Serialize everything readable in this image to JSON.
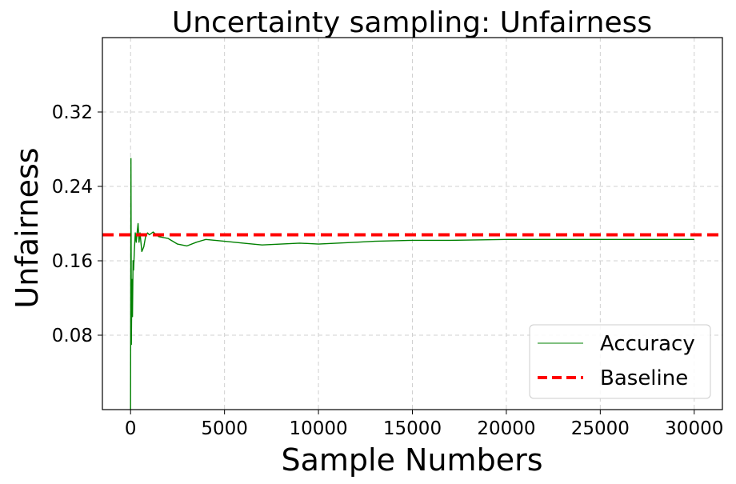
{
  "chart_data": {
    "type": "line",
    "title": "Uncertainty sampling: Unfairness",
    "xlabel": "Sample Numbers",
    "ylabel": "Unfairness",
    "xlim": [
      -1500,
      31500
    ],
    "ylim": [
      0.0,
      0.4
    ],
    "xticks": [
      0,
      5000,
      10000,
      15000,
      20000,
      25000,
      30000
    ],
    "yticks": [
      0.08,
      0.16,
      0.24,
      0.32
    ],
    "ytick_labels": [
      "0.08",
      "0.16",
      "0.24",
      "0.32"
    ],
    "grid": true,
    "legend_position": "lower-right",
    "series": [
      {
        "name": "Accuracy",
        "color": "#008000",
        "style": "solid",
        "x": [
          0,
          20,
          40,
          60,
          80,
          100,
          130,
          160,
          200,
          250,
          300,
          350,
          400,
          450,
          500,
          600,
          700,
          800,
          900,
          1000,
          1200,
          1500,
          2000,
          2500,
          3000,
          3500,
          4000,
          5000,
          6000,
          7000,
          8000,
          9000,
          10000,
          11000,
          12000,
          13000,
          15000,
          17000,
          20000,
          23000,
          26000,
          28000,
          30000
        ],
        "y": [
          0.0,
          0.27,
          0.07,
          0.11,
          0.14,
          0.1,
          0.16,
          0.15,
          0.17,
          0.19,
          0.18,
          0.19,
          0.2,
          0.18,
          0.19,
          0.17,
          0.175,
          0.186,
          0.19,
          0.188,
          0.191,
          0.186,
          0.184,
          0.178,
          0.176,
          0.18,
          0.183,
          0.181,
          0.179,
          0.177,
          0.178,
          0.179,
          0.178,
          0.179,
          0.18,
          0.181,
          0.182,
          0.182,
          0.183,
          0.183,
          0.183,
          0.183,
          0.183
        ]
      },
      {
        "name": "Baseline",
        "color": "#ff0000",
        "style": "dashed",
        "y_constant": 0.188
      }
    ]
  }
}
